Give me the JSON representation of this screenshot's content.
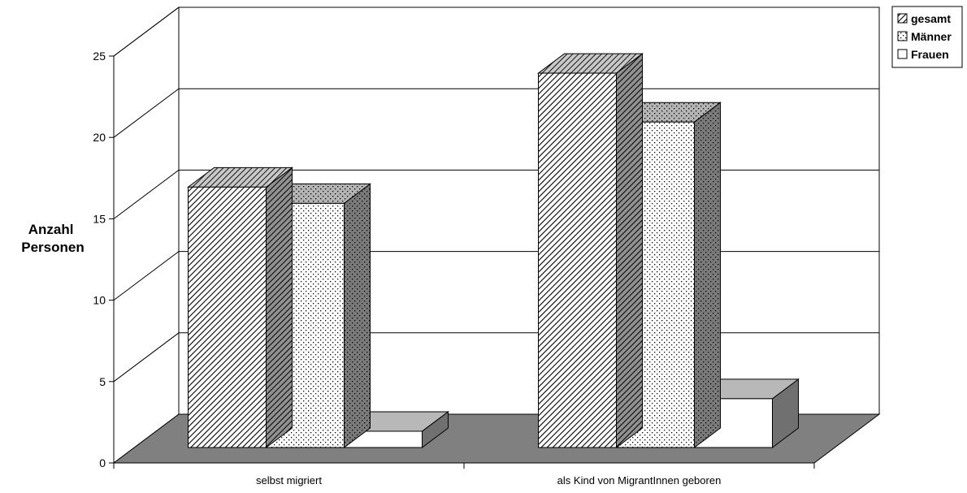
{
  "chart_data": {
    "type": "bar",
    "categories": [
      "selbst migriert",
      "als Kind von MigrantInnen geboren"
    ],
    "series": [
      {
        "name": "gesamt",
        "values": [
          16,
          23
        ],
        "pattern": "diagonal-hatch"
      },
      {
        "name": "Männer",
        "values": [
          15,
          20
        ],
        "pattern": "dots"
      },
      {
        "name": "Frauen",
        "values": [
          1,
          3
        ],
        "pattern": "solid-white"
      }
    ],
    "title": "",
    "xlabel": "",
    "ylabel": "Anzahl Personen",
    "ylim": [
      0,
      25
    ],
    "yticks": [
      0,
      5,
      10,
      15,
      20,
      25
    ],
    "grid": true,
    "legend_position": "top-right",
    "style": "3d-clustered-column",
    "colors": {
      "floor": "#808080",
      "wall": "#ffffff",
      "gridline": "#000000",
      "side_dark": "#707070",
      "top_light": "#b8b8b8"
    }
  }
}
